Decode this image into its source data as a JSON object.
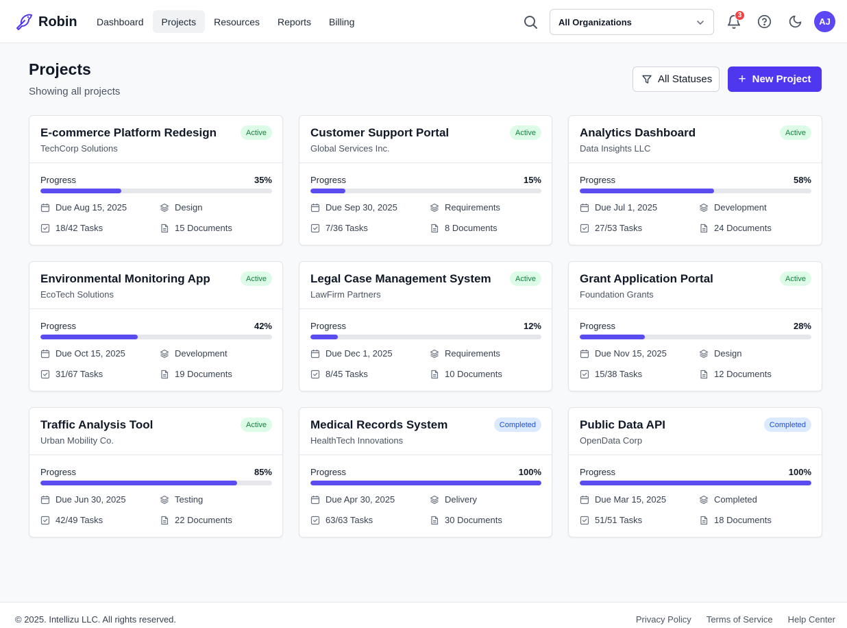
{
  "app": {
    "name": "Robin"
  },
  "nav": [
    {
      "label": "Dashboard",
      "active": false
    },
    {
      "label": "Projects",
      "active": true
    },
    {
      "label": "Resources",
      "active": false
    },
    {
      "label": "Reports",
      "active": false
    },
    {
      "label": "Billing",
      "active": false
    }
  ],
  "header": {
    "org_select": "All Organizations",
    "notification_count": "3",
    "avatar_initials": "AJ",
    "icons": [
      "search-icon",
      "chevron-down-icon",
      "bell-icon",
      "help-circle-icon",
      "moon-icon"
    ]
  },
  "page": {
    "title": "Projects",
    "subtitle": "Showing all projects",
    "status_filter": "All Statuses",
    "new_project": "New Project"
  },
  "progress_label": "Progress",
  "projects": [
    {
      "title": "E-commerce Platform Redesign",
      "client": "TechCorp Solutions",
      "status": "Active",
      "status_kind": "active",
      "progress": 35,
      "progress_text": "35%",
      "due": "Due Aug 15, 2025",
      "phase": "Design",
      "tasks": "18/42 Tasks",
      "documents": "15 Documents"
    },
    {
      "title": "Customer Support Portal",
      "client": "Global Services Inc.",
      "status": "Active",
      "status_kind": "active",
      "progress": 15,
      "progress_text": "15%",
      "due": "Due Sep 30, 2025",
      "phase": "Requirements",
      "tasks": "7/36 Tasks",
      "documents": "8 Documents"
    },
    {
      "title": "Analytics Dashboard",
      "client": "Data Insights LLC",
      "status": "Active",
      "status_kind": "active",
      "progress": 58,
      "progress_text": "58%",
      "due": "Due Jul 1, 2025",
      "phase": "Development",
      "tasks": "27/53 Tasks",
      "documents": "24 Documents"
    },
    {
      "title": "Environmental Monitoring App",
      "client": "EcoTech Solutions",
      "status": "Active",
      "status_kind": "active",
      "progress": 42,
      "progress_text": "42%",
      "due": "Due Oct 15, 2025",
      "phase": "Development",
      "tasks": "31/67 Tasks",
      "documents": "19 Documents"
    },
    {
      "title": "Legal Case Management System",
      "client": "LawFirm Partners",
      "status": "Active",
      "status_kind": "active",
      "progress": 12,
      "progress_text": "12%",
      "due": "Due Dec 1, 2025",
      "phase": "Requirements",
      "tasks": "8/45 Tasks",
      "documents": "10 Documents"
    },
    {
      "title": "Grant Application Portal",
      "client": "Foundation Grants",
      "status": "Active",
      "status_kind": "active",
      "progress": 28,
      "progress_text": "28%",
      "due": "Due Nov 15, 2025",
      "phase": "Design",
      "tasks": "15/38 Tasks",
      "documents": "12 Documents"
    },
    {
      "title": "Traffic Analysis Tool",
      "client": "Urban Mobility Co.",
      "status": "Active",
      "status_kind": "active",
      "progress": 85,
      "progress_text": "85%",
      "due": "Due Jun 30, 2025",
      "phase": "Testing",
      "tasks": "42/49 Tasks",
      "documents": "22 Documents"
    },
    {
      "title": "Medical Records System",
      "client": "HealthTech Innovations",
      "status": "Completed",
      "status_kind": "completed",
      "progress": 100,
      "progress_text": "100%",
      "due": "Due Apr 30, 2025",
      "phase": "Delivery",
      "tasks": "63/63 Tasks",
      "documents": "30 Documents"
    },
    {
      "title": "Public Data API",
      "client": "OpenData Corp",
      "status": "Completed",
      "status_kind": "completed",
      "progress": 100,
      "progress_text": "100%",
      "due": "Due Mar 15, 2025",
      "phase": "Completed",
      "tasks": "51/51 Tasks",
      "documents": "18 Documents"
    }
  ],
  "footer": {
    "copyright": "© 2025. Intellizu LLC. All rights reserved.",
    "links": [
      "Privacy Policy",
      "Terms of Service",
      "Help Center"
    ]
  },
  "colors": {
    "accent": "#4f37f0",
    "progress": "#5b4cf0",
    "active_badge": "#dcfce7",
    "completed_badge": "#dbeafe"
  }
}
